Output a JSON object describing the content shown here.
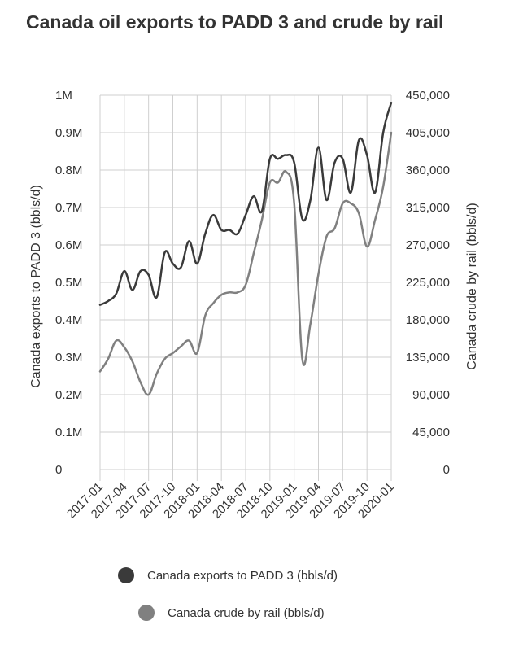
{
  "title": "Canada oil exports to PADD 3 and crude by rail",
  "chart_data": {
    "type": "line",
    "title": "Canada oil exports to PADD 3 and crude by rail",
    "grid": true,
    "legend_position": "bottom",
    "x_tick_labels": [
      "2017-01",
      "2017-04",
      "2017-07",
      "2017-10",
      "2018-01",
      "2018-04",
      "2018-07",
      "2018-10",
      "2019-01",
      "2019-04",
      "2019-07",
      "2019-10",
      "2020-01"
    ],
    "x": [
      "2017-01",
      "2017-02",
      "2017-03",
      "2017-04",
      "2017-05",
      "2017-06",
      "2017-07",
      "2017-08",
      "2017-09",
      "2017-10",
      "2017-11",
      "2017-12",
      "2018-01",
      "2018-02",
      "2018-03",
      "2018-04",
      "2018-05",
      "2018-06",
      "2018-07",
      "2018-08",
      "2018-09",
      "2018-10",
      "2018-11",
      "2018-12",
      "2019-01",
      "2019-02",
      "2019-03",
      "2019-04",
      "2019-05",
      "2019-06",
      "2019-07",
      "2019-08",
      "2019-09",
      "2019-10",
      "2019-11",
      "2019-12",
      "2020-01"
    ],
    "y_left": {
      "label": "Canada exports to PADD 3 (bbls/d)",
      "range": [
        0,
        1000000
      ],
      "tick_labels": [
        "0",
        "0.1M",
        "0.2M",
        "0.3M",
        "0.4M",
        "0.5M",
        "0.6M",
        "0.7M",
        "0.8M",
        "0.9M",
        "1M"
      ]
    },
    "y_right": {
      "label": "Canada crude by rail (bbls/d)",
      "range": [
        0,
        450000
      ],
      "tick_labels": [
        "0",
        "45,000",
        "90,000",
        "135,000",
        "180,000",
        "225,000",
        "270,000",
        "315,000",
        "360,000",
        "405,000",
        "450,000"
      ]
    },
    "series": [
      {
        "name": "Canada exports to PADD 3 (bbls/d)",
        "axis": "left",
        "color": "#3a3a3a",
        "values": [
          440000,
          450000,
          470000,
          530000,
          480000,
          530000,
          520000,
          460000,
          580000,
          550000,
          540000,
          610000,
          550000,
          630000,
          680000,
          640000,
          640000,
          630000,
          680000,
          730000,
          690000,
          830000,
          830000,
          840000,
          820000,
          670000,
          720000,
          860000,
          720000,
          820000,
          830000,
          740000,
          880000,
          840000,
          740000,
          900000,
          980000
        ]
      },
      {
        "name": "Canada crude by rail (bbls/d)",
        "axis": "right",
        "color": "#808080",
        "values": [
          118000,
          133000,
          155000,
          147000,
          130000,
          105000,
          90000,
          115000,
          133000,
          140000,
          148000,
          155000,
          140000,
          185000,
          200000,
          210000,
          213000,
          213000,
          222000,
          260000,
          300000,
          345000,
          345000,
          358000,
          320000,
          133000,
          175000,
          235000,
          280000,
          290000,
          320000,
          320000,
          308000,
          268000,
          300000,
          340000,
          405000
        ]
      }
    ]
  }
}
